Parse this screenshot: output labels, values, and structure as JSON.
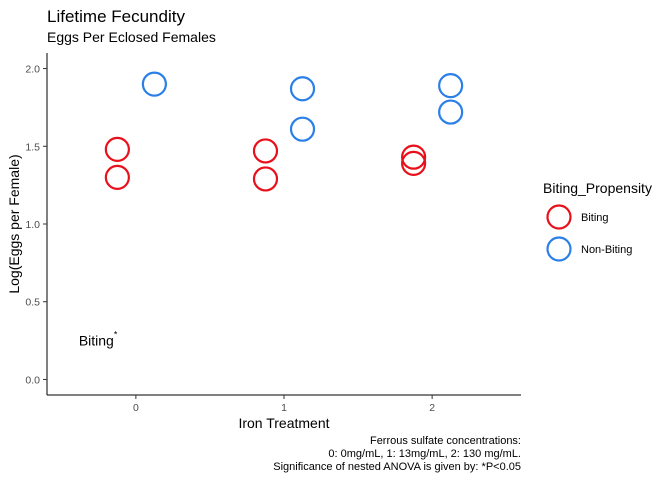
{
  "chart_data": {
    "type": "scatter",
    "title": "Lifetime Fecundity",
    "subtitle": "Eggs Per Eclosed Females",
    "xlabel": "Iron Treatment",
    "ylabel": "Log(Eggs per Female)",
    "categories": [
      "0",
      "1",
      "2"
    ],
    "xlim": [
      -0.6,
      2.6
    ],
    "ylim": [
      -0.1,
      2.1
    ],
    "y_ticks": [
      0.0,
      0.5,
      1.0,
      1.5,
      2.0
    ],
    "y_tick_labels": [
      "0.0",
      "0.5",
      "1.0",
      "1.5",
      "2.0"
    ],
    "grid": false,
    "legend": {
      "title": "Biting_Propensity",
      "position": "right"
    },
    "series": [
      {
        "name": "Biting",
        "color": "#e8101a",
        "dodge": -0.125,
        "points": [
          {
            "x": "0",
            "y": 1.48
          },
          {
            "x": "0",
            "y": 1.3
          },
          {
            "x": "1",
            "y": 1.47
          },
          {
            "x": "1",
            "y": 1.29
          },
          {
            "x": "2",
            "y": 1.43
          },
          {
            "x": "2",
            "y": 1.39
          }
        ]
      },
      {
        "name": "Non-Biting",
        "color": "#2a7fe8",
        "dodge": 0.125,
        "points": [
          {
            "x": "0",
            "y": 1.9
          },
          {
            "x": "1",
            "y": 1.87
          },
          {
            "x": "1",
            "y": 1.61
          },
          {
            "x": "2",
            "y": 1.89
          },
          {
            "x": "2",
            "y": 1.72
          }
        ]
      }
    ],
    "annotations": [
      {
        "text": "Biting",
        "superscript": "*",
        "x": -0.125,
        "y": 0.25
      }
    ],
    "caption": [
      "Ferrous sulfate concentrations:",
      "0: 0mg/mL, 1: 13mg/mL, 2: 130 mg/mL.",
      "Significance of nested ANOVA is given by: *P<0.05"
    ]
  }
}
